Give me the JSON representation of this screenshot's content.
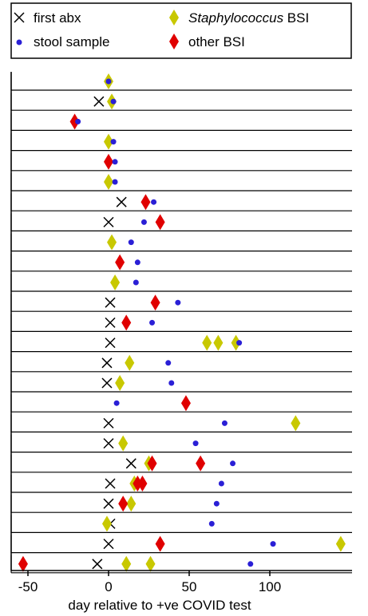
{
  "chart_data": {
    "type": "scatter",
    "xlabel": "day relative to +ve COVID test",
    "ylabel": "",
    "xlim": [
      -62,
      148
    ],
    "xticks": [
      -50,
      0,
      50,
      100
    ],
    "xtick_labels": [
      "-50",
      "0",
      "50",
      "100"
    ],
    "grid": false,
    "legend_position": "top",
    "legend": [
      {
        "symbol": "x",
        "label": "first abx",
        "italic_part": "",
        "color": "#000000"
      },
      {
        "symbol": "dot",
        "label": "stool sample",
        "italic_part": "",
        "color": "#2a1fd6"
      },
      {
        "symbol": "diamond",
        "label": "BSI",
        "italic_part": "Staphylococcus",
        "color": "#c8c800"
      },
      {
        "symbol": "diamond",
        "label": "other BSI",
        "italic_part": "",
        "color": "#e00000"
      }
    ],
    "colors": {
      "stool": "#2a1fd6",
      "staph": "#c8c800",
      "other": "#e00000",
      "abx": "#000000"
    },
    "rows": [
      {
        "abx": [],
        "stool": [
          0
        ],
        "staph": [
          0
        ],
        "other": []
      },
      {
        "abx": [
          -6
        ],
        "stool": [
          3
        ],
        "staph": [
          2
        ],
        "other": []
      },
      {
        "abx": [],
        "stool": [
          -19
        ],
        "staph": [],
        "other": [
          -21
        ]
      },
      {
        "abx": [],
        "stool": [
          3
        ],
        "staph": [
          0
        ],
        "other": []
      },
      {
        "abx": [],
        "stool": [
          4
        ],
        "staph": [],
        "other": [
          0
        ]
      },
      {
        "abx": [],
        "stool": [
          4
        ],
        "staph": [
          0
        ],
        "other": []
      },
      {
        "abx": [
          8
        ],
        "stool": [
          28
        ],
        "staph": [],
        "other": [
          23
        ]
      },
      {
        "abx": [
          0
        ],
        "stool": [
          22
        ],
        "staph": [],
        "other": [
          32
        ]
      },
      {
        "abx": [],
        "stool": [
          14
        ],
        "staph": [
          2
        ],
        "other": []
      },
      {
        "abx": [],
        "stool": [
          18
        ],
        "staph": [],
        "other": [
          7
        ]
      },
      {
        "abx": [],
        "stool": [
          17
        ],
        "staph": [
          4
        ],
        "other": []
      },
      {
        "abx": [
          1
        ],
        "stool": [
          43
        ],
        "staph": [],
        "other": [
          29
        ]
      },
      {
        "abx": [
          1
        ],
        "stool": [
          27
        ],
        "staph": [],
        "other": [
          11
        ]
      },
      {
        "abx": [
          1
        ],
        "stool": [
          81
        ],
        "staph": [
          61,
          68,
          79
        ],
        "other": []
      },
      {
        "abx": [
          -1
        ],
        "stool": [
          37
        ],
        "staph": [
          13
        ],
        "other": []
      },
      {
        "abx": [
          -1
        ],
        "stool": [
          39
        ],
        "staph": [
          7
        ],
        "other": []
      },
      {
        "abx": [],
        "stool": [
          5
        ],
        "staph": [],
        "other": [
          48
        ]
      },
      {
        "abx": [
          0
        ],
        "stool": [
          72
        ],
        "staph": [
          116
        ],
        "other": []
      },
      {
        "abx": [
          0
        ],
        "stool": [
          54
        ],
        "staph": [
          9
        ],
        "other": []
      },
      {
        "abx": [
          14
        ],
        "stool": [
          77
        ],
        "staph": [
          25
        ],
        "other": [
          27,
          57
        ]
      },
      {
        "abx": [
          1
        ],
        "stool": [
          70
        ],
        "staph": [
          16
        ],
        "other": [
          18,
          21
        ]
      },
      {
        "abx": [
          0
        ],
        "stool": [
          67
        ],
        "staph": [
          14
        ],
        "other": [
          9
        ]
      },
      {
        "abx": [
          1
        ],
        "stool": [
          64
        ],
        "staph": [
          -1
        ],
        "other": []
      },
      {
        "abx": [
          0
        ],
        "stool": [
          102
        ],
        "staph": [
          144
        ],
        "other": [
          32
        ]
      },
      {
        "abx": [
          -7
        ],
        "stool": [
          88
        ],
        "staph": [
          11,
          26
        ],
        "other": [
          -53
        ]
      }
    ]
  }
}
